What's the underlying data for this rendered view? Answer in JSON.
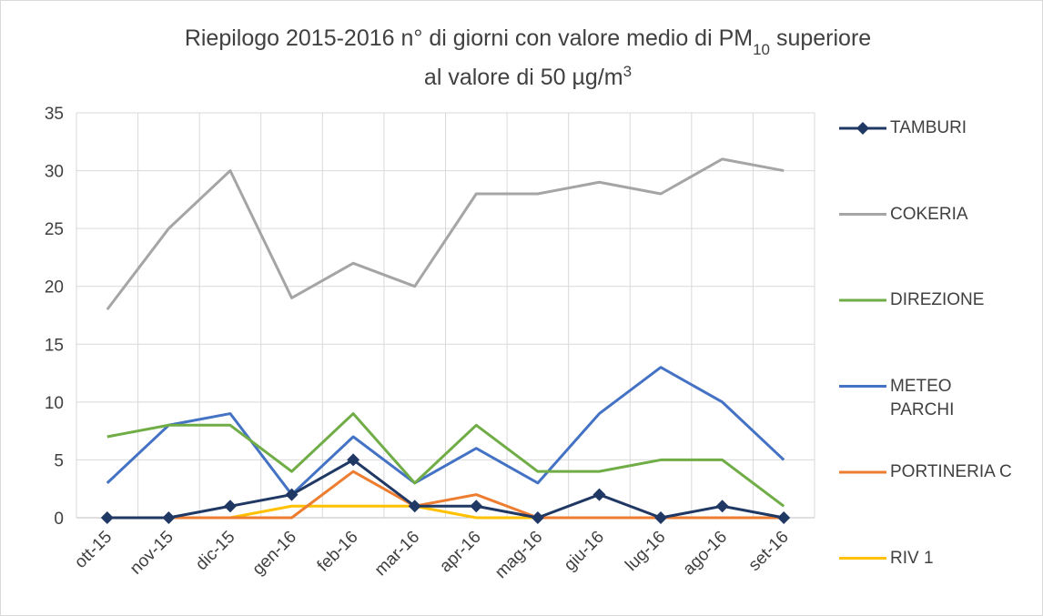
{
  "chart_data": {
    "type": "line",
    "title_line1": [
      "Riepilogo 2015-2016  n° di giorni con valore medio di PM",
      "10",
      " superiore"
    ],
    "title_line2": [
      "al valore di 50 µg/m",
      "3"
    ],
    "categories": [
      "ott-15",
      "nov-15",
      "dic-15",
      "gen-16",
      "feb-16",
      "mar-16",
      "apr-16",
      "mag-16",
      "giu-16",
      "lug-16",
      "ago-16",
      "set-16"
    ],
    "series": [
      {
        "name": "TAMBURI",
        "color": "#203864",
        "marker": "diamond",
        "values": [
          0,
          0,
          1,
          2,
          5,
          1,
          1,
          0,
          2,
          0,
          1,
          0
        ]
      },
      {
        "name": "COKERIA",
        "color": "#a5a5a5",
        "values": [
          18,
          25,
          30,
          19,
          22,
          20,
          28,
          28,
          29,
          28,
          31,
          30
        ]
      },
      {
        "name": "DIREZIONE",
        "color": "#70ad47",
        "values": [
          7,
          8,
          8,
          4,
          9,
          3,
          8,
          4,
          4,
          5,
          5,
          1
        ]
      },
      {
        "name": "METEO PARCHI",
        "color": "#4472c4",
        "values": [
          3,
          8,
          9,
          2,
          7,
          3,
          6,
          3,
          9,
          13,
          10,
          5
        ]
      },
      {
        "name": "PORTINERIA C",
        "color": "#ed7d31",
        "values": [
          0,
          0,
          0,
          0,
          4,
          1,
          2,
          0,
          0,
          0,
          0,
          0
        ]
      },
      {
        "name": "RIV 1",
        "color": "#ffc000",
        "values": [
          0,
          0,
          0,
          1,
          1,
          1,
          0,
          0,
          0,
          0,
          0,
          0
        ]
      }
    ],
    "ylim": [
      0,
      35
    ],
    "yticks": [
      0,
      5,
      10,
      15,
      20,
      25,
      30,
      35
    ],
    "grid": true,
    "legend": "right"
  }
}
